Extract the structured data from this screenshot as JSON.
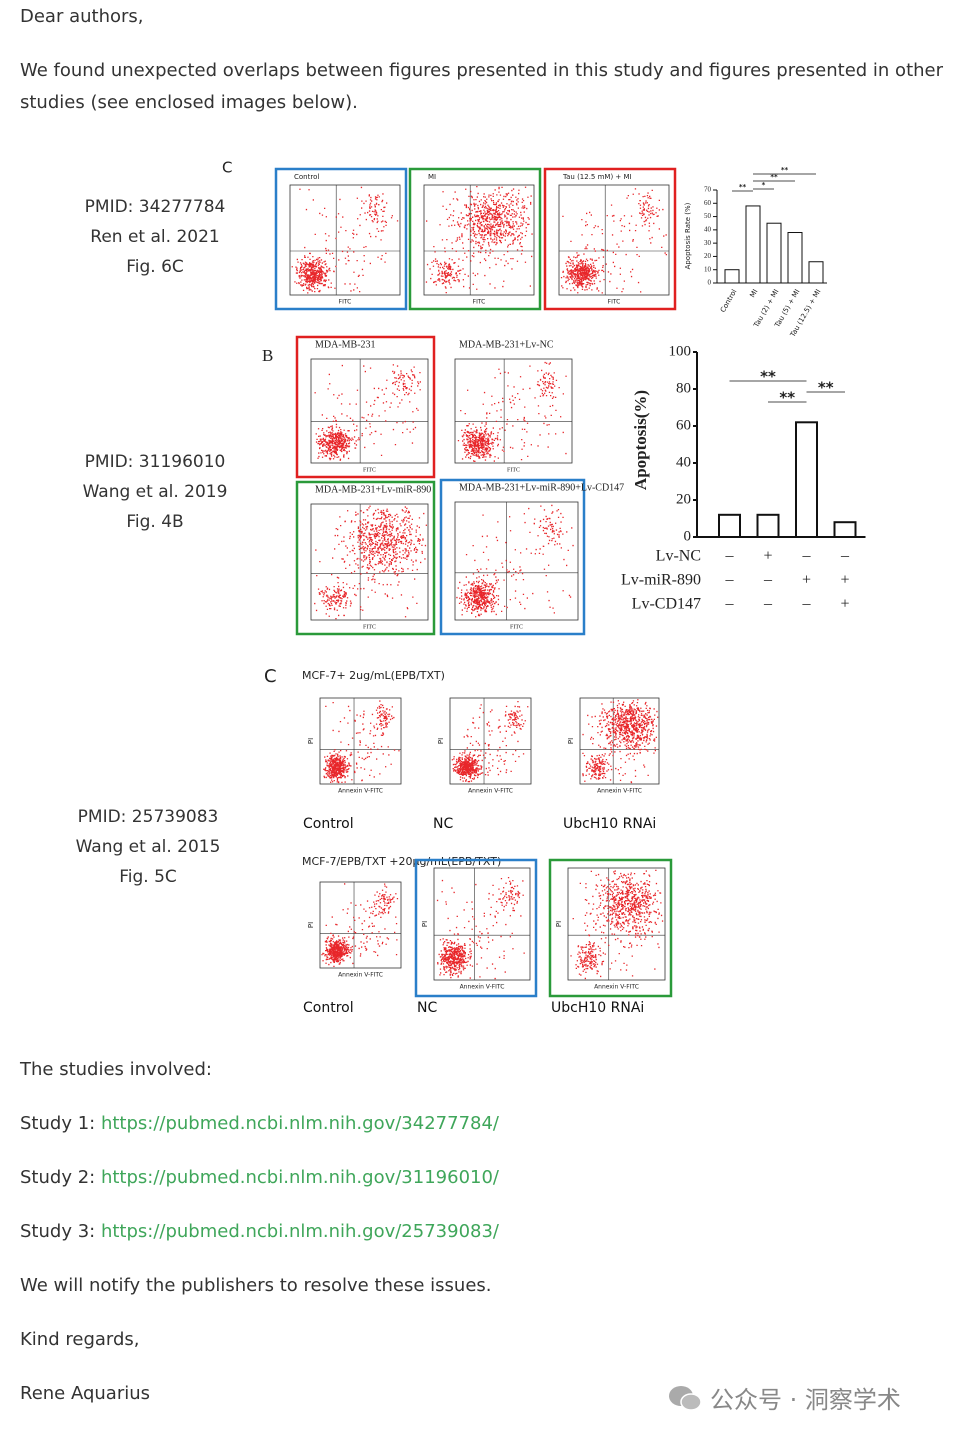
{
  "greeting": "Dear authors,",
  "intro_lines": [
    "We found unexpected overlaps between figures presented in this study and figures presented in other",
    "studies (see enclosed images below)."
  ],
  "figures": [
    {
      "pmid": "PMID: 34277784",
      "citation": "Ren et al. 2021",
      "fig": "Fig. 6C",
      "panel": "C",
      "axis_label": "FITC",
      "plots": [
        {
          "title": "Control",
          "border": "#2a7fc9"
        },
        {
          "title": "MI",
          "border": "#2a9a3a"
        },
        {
          "title": "Tau (12.5 mM) + MI",
          "border": "#e02020"
        }
      ],
      "chart": {
        "type": "bar",
        "ylabel": "Apoptosis Rate (%)",
        "categories": [
          "Control",
          "MI",
          "Tau (2) + MI",
          "Tau (5) + MI",
          "Tau (12.5) + MI"
        ],
        "values": [
          10,
          58,
          45,
          38,
          16
        ],
        "ylim": [
          0,
          70
        ],
        "yticks": [
          0,
          10,
          20,
          30,
          40,
          50,
          60,
          70
        ],
        "significance": [
          "**",
          "*",
          "**",
          "**"
        ]
      }
    },
    {
      "pmid": "PMID: 31196010",
      "citation": "Wang et al. 2019",
      "fig": "Fig. 4B",
      "panel": "B",
      "axis_label": "FITC",
      "plots": [
        {
          "title": "MDA-MB-231",
          "border": "#e02020"
        },
        {
          "title": "MDA-MB-231+Lv-NC"
        },
        {
          "title": "MDA-MB-231+Lv-miR-890",
          "border": "#2a9a3a"
        },
        {
          "title": "MDA-MB-231+Lv-miR-890+Lv-CD147",
          "border": "#2a7fc9"
        }
      ],
      "chart": {
        "type": "bar",
        "ylabel": "Apoptosis(%)",
        "values": [
          12,
          12,
          62,
          8
        ],
        "ylim": [
          0,
          100
        ],
        "yticks": [
          0,
          20,
          40,
          60,
          80,
          100
        ],
        "significance": [
          "**",
          "**",
          "**"
        ],
        "conditions": [
          {
            "name": "Lv-NC",
            "signs": [
              "–",
              "+",
              "–",
              "–"
            ]
          },
          {
            "name": "Lv-miR-890",
            "signs": [
              "–",
              "–",
              "+",
              "+"
            ]
          },
          {
            "name": "Lv-CD147",
            "signs": [
              "–",
              "–",
              "–",
              "+"
            ]
          }
        ]
      }
    },
    {
      "pmid": "PMID: 25739083",
      "citation": "Wang et al. 2015",
      "fig": "Fig. 5C",
      "panel": "C",
      "axis_label": "Annexin V-FITC",
      "y_axis_label": "PI",
      "rows": [
        {
          "title": "MCF-7+ 2ug/mL(EPB/TXT)",
          "plots": [
            {
              "title": "Control"
            },
            {
              "title": "NC"
            },
            {
              "title": "UbcH10 RNAi"
            }
          ]
        },
        {
          "title": "MCF-7/EPB/TXT +20μg/mL(EPB/TXT)",
          "plots": [
            {
              "title": "Control"
            },
            {
              "title": "NC",
              "border": "#2a7fc9"
            },
            {
              "title": "UbcH10 RNAi",
              "border": "#2a9a3a"
            }
          ]
        }
      ]
    }
  ],
  "studies_heading": "The studies involved:",
  "studies": [
    {
      "label": "Study 1:",
      "url": "https://pubmed.ncbi.nlm.nih.gov/34277784/"
    },
    {
      "label": "Study 2:",
      "url": "https://pubmed.ncbi.nlm.nih.gov/31196010/"
    },
    {
      "label": "Study 3:",
      "url": "https://pubmed.ncbi.nlm.nih.gov/25739083/"
    }
  ],
  "notify": "We will notify the publishers to resolve these issues.",
  "closing": "Kind regards,",
  "signature": "Rene Aquarius",
  "watermark": "公众号 · 洞察学术"
}
